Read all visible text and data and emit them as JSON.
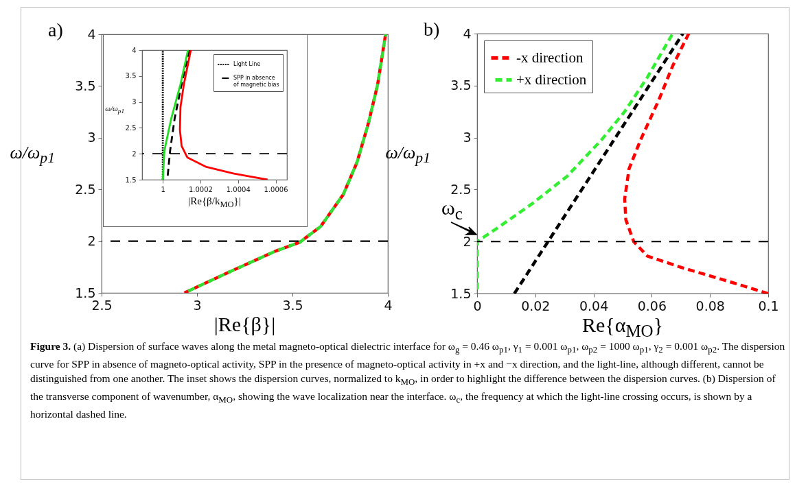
{
  "chart_data": [
    {
      "type": "line",
      "title": "a)",
      "xlabel": "|Re{β}|",
      "ylabel": "ω/ω$_{p1}$",
      "xlim": [
        2.5,
        4
      ],
      "ylim": [
        1.5,
        4
      ],
      "xticks": [
        2.5,
        3,
        3.5,
        4
      ],
      "yticks": [
        1.5,
        2,
        2.5,
        3,
        3.5,
        4
      ],
      "series": [
        {
          "color": "#ff0000",
          "line_style": "dashed",
          "x": [
            2.934,
            3.167,
            3.407,
            3.539,
            3.647,
            3.766,
            3.838,
            3.898,
            3.946,
            3.988
          ],
          "values": [
            1.5,
            1.7,
            1.9,
            1.99,
            2.14,
            2.45,
            2.76,
            3.14,
            3.51,
            4.0
          ]
        },
        {
          "color": "#33dd33",
          "line_style": "dashed",
          "x": [
            2.934,
            3.167,
            3.407,
            3.539,
            3.647,
            3.766,
            3.838,
            3.898,
            3.946,
            3.988
          ],
          "values": [
            1.5,
            1.7,
            1.9,
            1.99,
            2.14,
            2.45,
            2.76,
            3.14,
            3.51,
            4.0
          ]
        }
      ],
      "ref_lines": [
        {
          "axis": "y",
          "value": 2,
          "color": "#000000",
          "line_style": "dashed"
        }
      ],
      "annotations": [
        "Figure 3. (a) Dispersion of surface waves along the metal magneto-optical dielectric interface for ω$_{g}$ = 0.46 ω$_{p1}$, γ$_{1}$ = 0.001 ω$_{p1}$, ω$_{p2}$ = 1000 ω$_{p1}$, γ$_{2}$ = 0.001 ω$_{p2}$. The dispersion curve for SPP in absence of magneto-optical activity, SPP in the presence of magneto-optical activity in +x and −x direction, and the light-line, although different, cannot be distinguished from one another. The inset shows the dispersion curves, normalized to k$_{MO}$, in order to highlight the difference between the dispersion curves. (b) Dispersion of the transverse component of wavenumber, α$_{MO}$, showing the wave localization near the interface. ω$_{c}$, the frequency at which the light-line crossing occurs, is shown by a horizontal dashed line."
      ]
    },
    {
      "type": "line",
      "xlabel": "|Re{β/k$_{MO}$}|",
      "ylabel": "ω/ω$_{p1}$",
      "xlim": [
        0.99989,
        1.00066
      ],
      "ylim": [
        1.5,
        4
      ],
      "xticks": [
        1,
        1.0002,
        1.0004,
        1.0006
      ],
      "yticks": [
        1.5,
        2,
        2.5,
        3,
        3.5,
        4
      ],
      "legend": "top right",
      "series": [
        {
          "name": "Light Line",
          "color": "#000000",
          "line_style": "dotted",
          "x": [
            1,
            1
          ],
          "values": [
            1.5,
            4
          ]
        },
        {
          "name": "SPP in absence of magnetic bias",
          "color": "#000000",
          "line_style": "dashed",
          "x": [
            1.000024,
            1.000039,
            1.000063,
            1.0001,
            1.00014
          ],
          "values": [
            1.5,
            2.06,
            2.68,
            3.34,
            4
          ]
        },
        {
          "color": "#22dd22",
          "line_style": "solid",
          "x": [
            1.0,
            1.0000085,
            1.000045,
            1.000094,
            1.000134
          ],
          "values": [
            1.5,
            2.06,
            2.68,
            3.34,
            4
          ]
        },
        {
          "color": "#ff0000",
          "line_style": "solid",
          "x": [
            1.000557,
            1.000374,
            1.000228,
            1.00013,
            1.0001,
            1.000091,
            1.000094,
            1.000112,
            1.000149
          ],
          "values": [
            1.5,
            1.62,
            1.75,
            1.93,
            2.15,
            2.46,
            2.9,
            3.34,
            4
          ]
        }
      ],
      "ref_lines": [
        {
          "axis": "y",
          "value": 2,
          "color": "#000000",
          "line_style": "dashed"
        }
      ]
    },
    {
      "type": "line",
      "title": "b)",
      "xlabel": "Re{α$_{MO}$}",
      "ylabel": "ω/ω$_{p1}$",
      "xlim": [
        0,
        0.1
      ],
      "ylim": [
        1.5,
        4
      ],
      "xticks": [
        0,
        0.02,
        0.04,
        0.06,
        0.08,
        0.1
      ],
      "yticks": [
        1.5,
        2,
        2.5,
        3,
        3.5,
        4
      ],
      "legend": "top left",
      "series": [
        {
          "name": "-x direction",
          "color": "#ff0000",
          "line_style": "dashed",
          "x": [
            0.1,
            0.086,
            0.0703,
            0.0585,
            0.0538,
            0.0511,
            0.0507,
            0.0522,
            0.0562,
            0.0624,
            0.0672,
            0.0727
          ],
          "values": [
            1.5,
            1.62,
            1.75,
            1.86,
            2.0,
            2.21,
            2.41,
            2.7,
            2.98,
            3.36,
            3.69,
            4
          ]
        },
        {
          "name": "+x direction",
          "color": "#33ee33",
          "line_style": "dashed",
          "x": [
            0,
            0,
            0.0075,
            0.0192,
            0.031,
            0.0428,
            0.0507,
            0.0585,
            0.0672
          ],
          "values": [
            1.5,
            2.0,
            2.14,
            2.37,
            2.63,
            2.98,
            3.25,
            3.58,
            4
          ]
        },
        {
          "color": "#000000",
          "line_style": "dashed",
          "x": [
            0.0128,
            0.0707
          ],
          "values": [
            1.5,
            4
          ]
        }
      ],
      "ref_lines": [
        {
          "axis": "y",
          "value": 2,
          "color": "#000000",
          "line_style": "dashed"
        }
      ],
      "annotations": [
        {
          "text": "ω$_{c}$",
          "x": 0,
          "y": 2
        }
      ]
    }
  ]
}
